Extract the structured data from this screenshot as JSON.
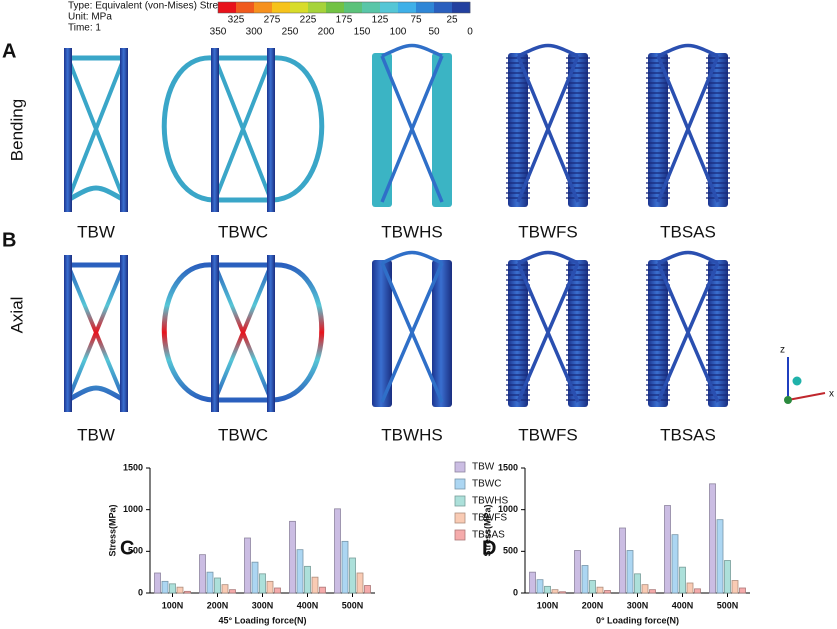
{
  "figure": {
    "colorbar": {
      "lines": [
        "Type: Equivalent (von-Mises) Stress",
        "Unit: MPa",
        "Time: 1"
      ],
      "top_ticks": [
        325,
        275,
        225,
        175,
        125,
        75,
        25
      ],
      "bottom_ticks": [
        350,
        300,
        250,
        200,
        150,
        100,
        50,
        0
      ],
      "colors": [
        "#e8121b",
        "#f05a1e",
        "#f6911e",
        "#f6c31b",
        "#d8dc2a",
        "#a6d33a",
        "#72c244",
        "#5bc27a",
        "#59c6a8",
        "#55c6d6",
        "#3fb0e8",
        "#2f86d6",
        "#2a5fbe",
        "#23409f"
      ]
    },
    "panels": [
      "A",
      "B",
      "C",
      "D"
    ],
    "rows": [
      "Bending",
      "Axial"
    ],
    "models_top": [
      "TBW",
      "TBWC",
      "TBWHS",
      "TBWFS",
      "TBSAS"
    ],
    "models_bottom": [
      "TBW",
      "TBWC",
      "TBWHS",
      "TBWFS",
      "TBSAS"
    ],
    "axes_icon": [
      "z",
      "x"
    ]
  },
  "chart_data": [
    {
      "type": "bar",
      "xlabel": "45° Loading force(N)",
      "ylabel": "Stress(MPa)",
      "categories": [
        "100N",
        "200N",
        "300N",
        "400N",
        "500N"
      ],
      "ylim": [
        0,
        1500
      ],
      "yticks": [
        0,
        500,
        1000,
        1500
      ],
      "series": [
        {
          "name": "TBW",
          "color": "#cbbde3",
          "values": [
            240,
            460,
            660,
            860,
            1010
          ]
        },
        {
          "name": "TBWC",
          "color": "#acd6f2",
          "values": [
            140,
            250,
            370,
            520,
            620
          ]
        },
        {
          "name": "TBWHS",
          "color": "#ace0da",
          "values": [
            110,
            180,
            230,
            320,
            420
          ]
        },
        {
          "name": "TBWFS",
          "color": "#f9cbb4",
          "values": [
            70,
            100,
            140,
            190,
            240
          ]
        },
        {
          "name": "TBSAS",
          "color": "#f5abab",
          "values": [
            20,
            40,
            60,
            70,
            90
          ]
        }
      ]
    },
    {
      "type": "bar",
      "xlabel": "0° Loading force(N)",
      "ylabel": "Stress(MPa)",
      "categories": [
        "100N",
        "200N",
        "300N",
        "400N",
        "500N"
      ],
      "ylim": [
        0,
        1500
      ],
      "yticks": [
        0,
        500,
        1000,
        1500
      ],
      "series": [
        {
          "name": "TBW",
          "color": "#cbbde3",
          "values": [
            250,
            510,
            780,
            1050,
            1310
          ]
        },
        {
          "name": "TBWC",
          "color": "#acd6f2",
          "values": [
            160,
            330,
            510,
            700,
            880
          ]
        },
        {
          "name": "TBWHS",
          "color": "#ace0da",
          "values": [
            80,
            150,
            230,
            310,
            390
          ]
        },
        {
          "name": "TBWFS",
          "color": "#f9cbb4",
          "values": [
            40,
            70,
            100,
            120,
            150
          ]
        },
        {
          "name": "TBSAS",
          "color": "#f5abab",
          "values": [
            15,
            30,
            40,
            50,
            60
          ]
        }
      ]
    }
  ]
}
